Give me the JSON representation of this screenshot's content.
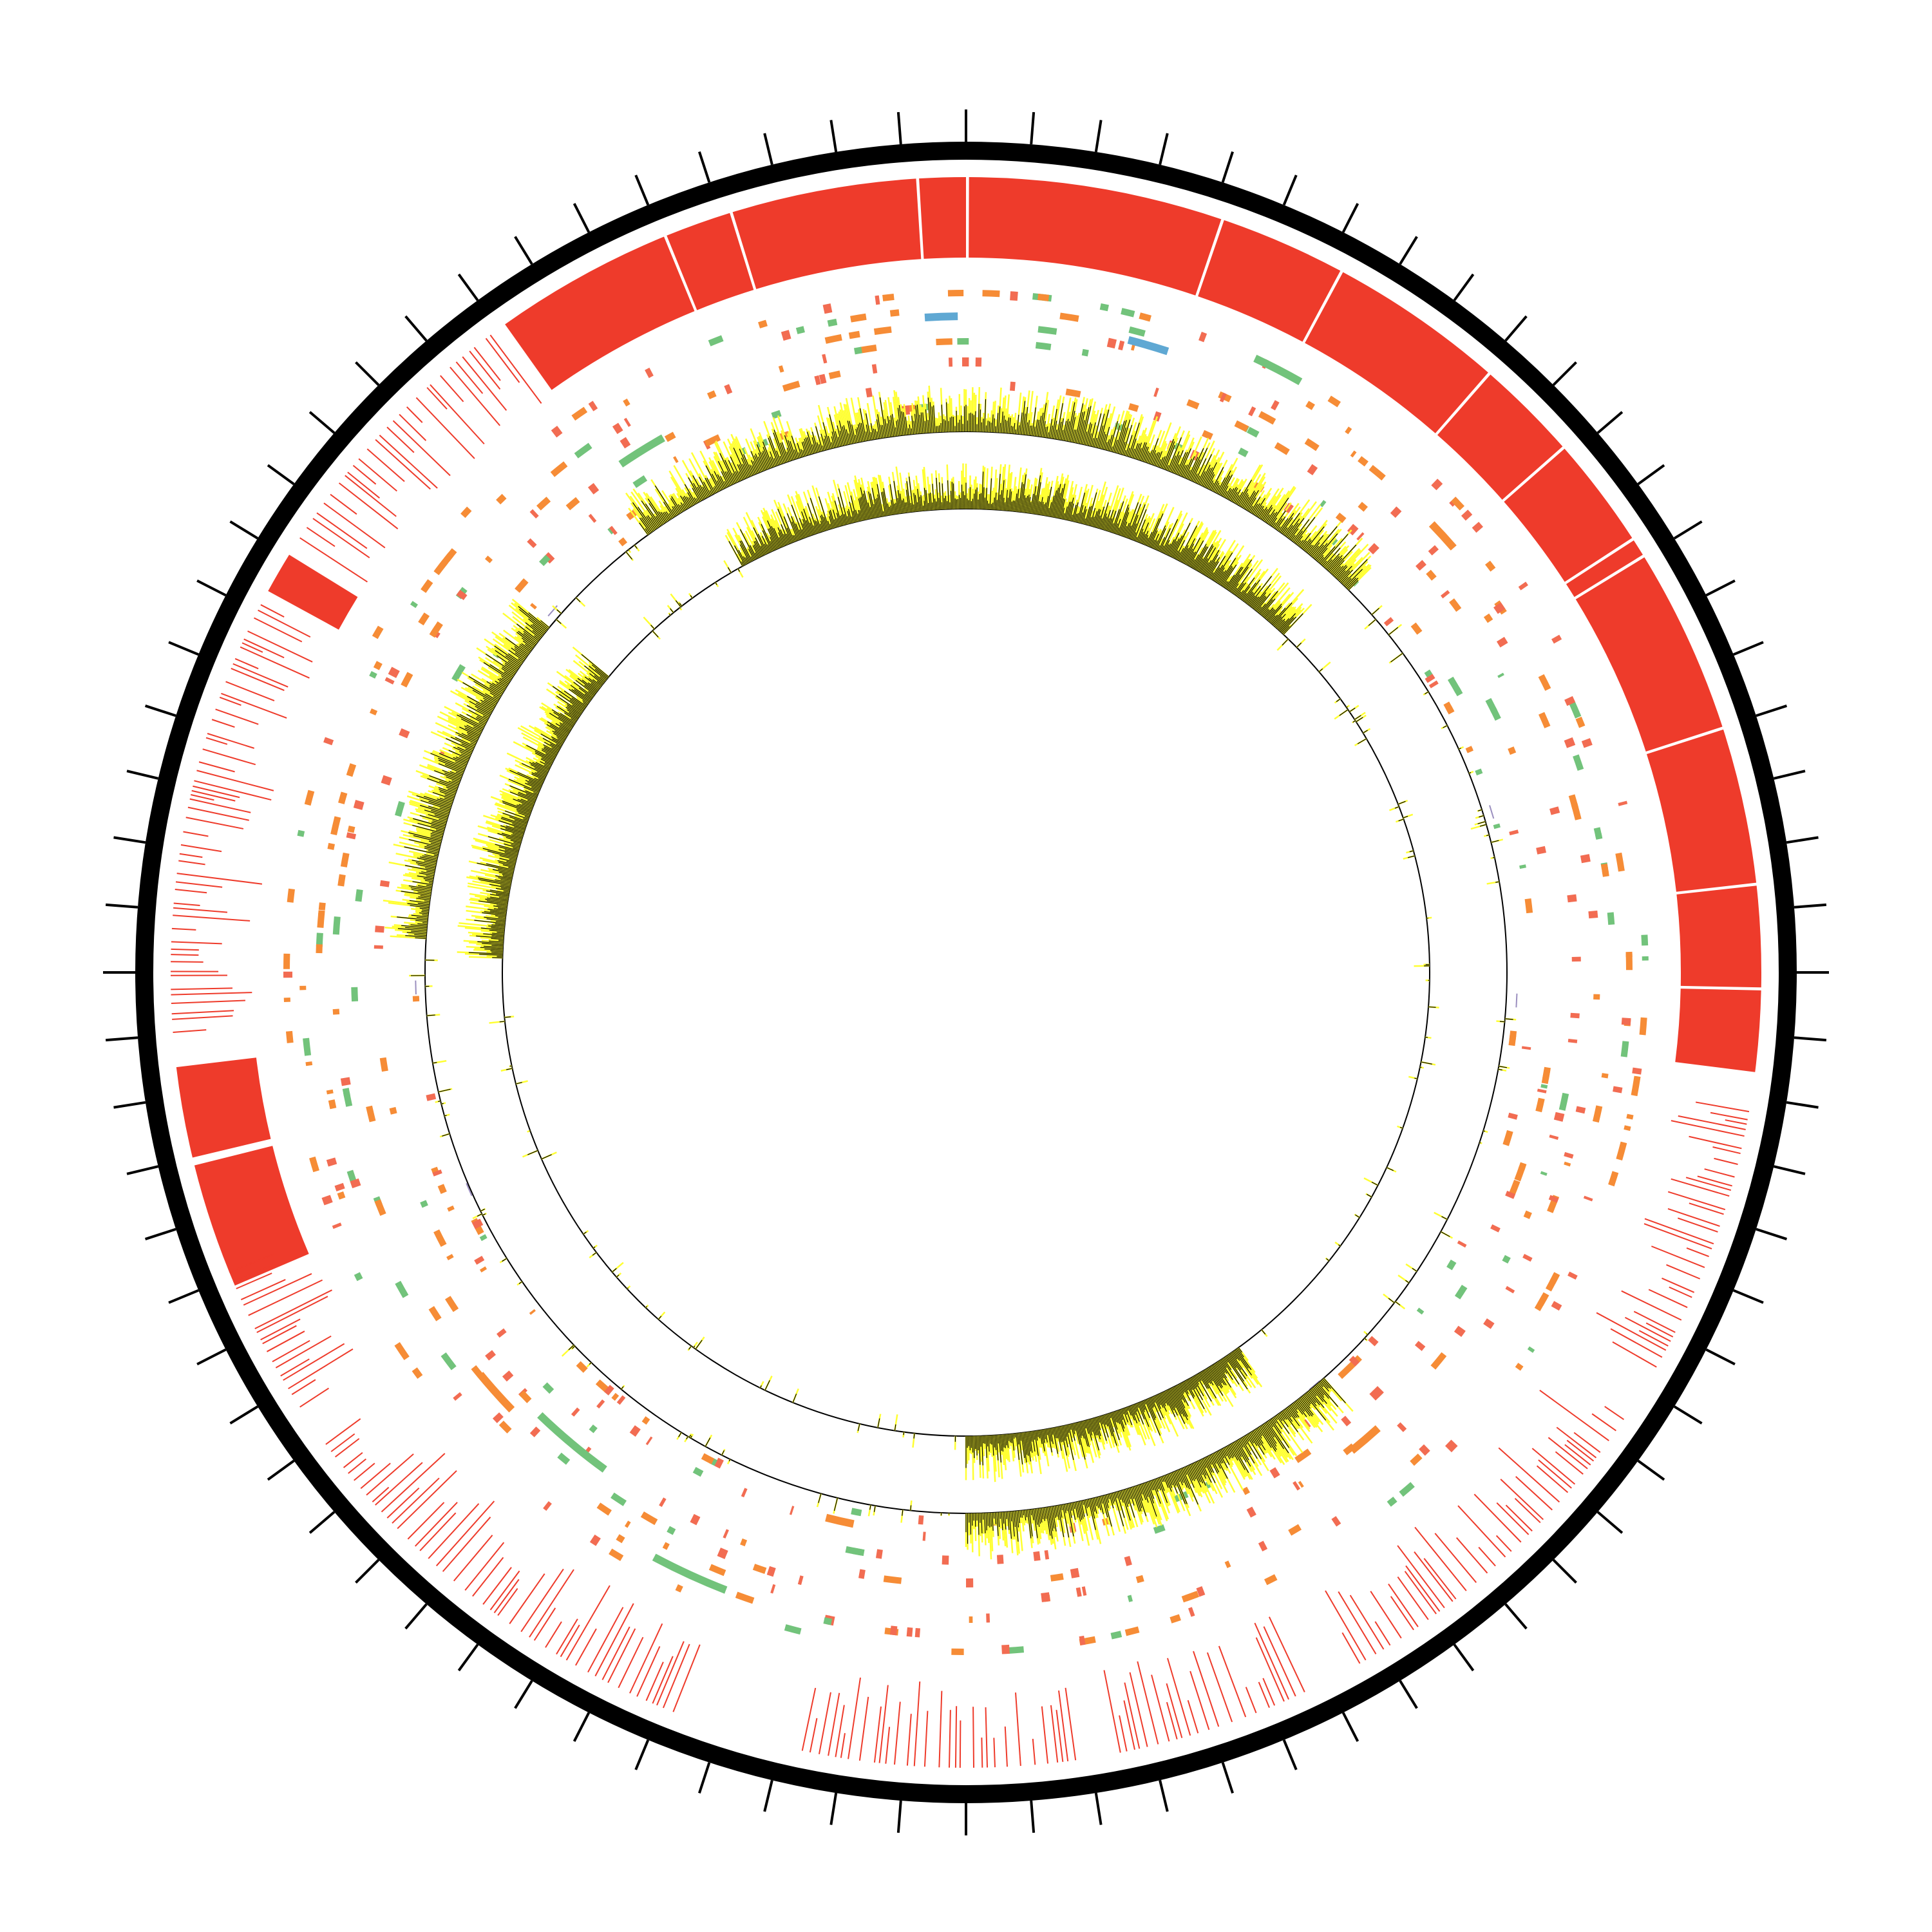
{
  "diagram": {
    "type": "circular-genome-plot",
    "colors": {
      "background": "#ffffff",
      "ideogram": "#000000",
      "feature_red": "#ee3b2b",
      "feature_orange": "#f68c36",
      "feature_salmon": "#f26c52",
      "feature_green": "#72c37b",
      "feature_blue": "#5fa8d3",
      "feature_purple": "#9b8fbf",
      "signal_fill": "#ffff33",
      "signal_line": "#000000",
      "baseline": "#000000"
    },
    "ideogram": {
      "tick_count": 80
    },
    "tracks": [
      {
        "name": "track-outer-red-blocks",
        "kind": "blocks",
        "color": "feature_red",
        "segments": [
          [
            0.0,
            0.052
          ],
          [
            0.052,
            0.078
          ],
          [
            0.078,
            0.114
          ],
          [
            0.114,
            0.135
          ],
          [
            0.135,
            0.158
          ],
          [
            0.158,
            0.162
          ],
          [
            0.162,
            0.2
          ],
          [
            0.2,
            0.232
          ],
          [
            0.232,
            0.253
          ],
          [
            0.253,
            0.27
          ],
          [
            0.685,
            0.711
          ],
          [
            0.712,
            0.731
          ],
          [
            0.829,
            0.838
          ],
          [
            0.901,
            0.938
          ],
          [
            0.938,
            0.952
          ],
          [
            0.952,
            0.99
          ],
          [
            0.99,
            1.0
          ]
        ]
      },
      {
        "name": "track-outer-red-lines",
        "kind": "dense-lines",
        "color": "feature_red",
        "ranges": [
          [
            0.278,
            0.335
          ],
          [
            0.345,
            0.42
          ],
          [
            0.43,
            0.47
          ],
          [
            0.478,
            0.535
          ],
          [
            0.56,
            0.65
          ],
          [
            0.658,
            0.69
          ],
          [
            0.738,
            0.827
          ],
          [
            0.842,
            0.9
          ]
        ]
      },
      {
        "name": "track-middle-features",
        "kind": "feature-ticks",
        "colors": [
          "feature_orange",
          "feature_salmon",
          "feature_green",
          "feature_blue",
          "feature_purple"
        ]
      },
      {
        "name": "track-signal-outer",
        "kind": "signal",
        "high_regions": [
          [
            0.76,
            0.86
          ],
          [
            0.9,
            0.015
          ],
          [
            0.015,
            0.125
          ],
          [
            0.385,
            0.5
          ]
        ]
      },
      {
        "name": "track-signal-inner",
        "kind": "signal",
        "high_regions": [
          [
            0.755,
            0.86
          ],
          [
            0.92,
            0.015
          ],
          [
            0.015,
            0.12
          ],
          [
            0.4,
            0.5
          ]
        ]
      }
    ]
  }
}
